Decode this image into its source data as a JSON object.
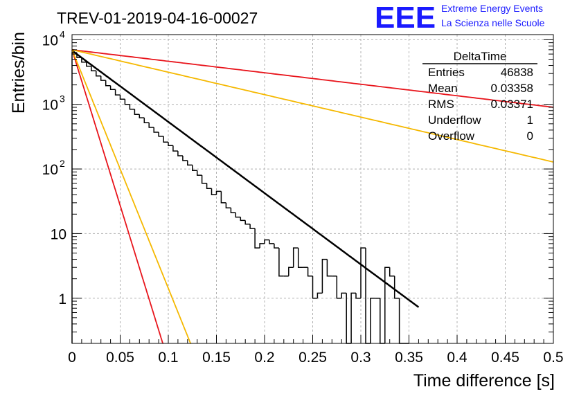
{
  "header": {
    "run_title": "TREV-01-2019-04-16-00027",
    "logo_letters": "EEE",
    "logo_line1": "Extreme Energy Events",
    "logo_line2": "La Scienza nelle Scuole"
  },
  "stats_box": {
    "title": "DeltaTime",
    "rows": [
      {
        "label": "Entries",
        "value": "46838"
      },
      {
        "label": "Mean",
        "value": "0.03358"
      },
      {
        "label": "RMS",
        "value": "0.03371"
      },
      {
        "label": "Underflow",
        "value": "1"
      },
      {
        "label": "Overflow",
        "value": "0"
      }
    ]
  },
  "chart_data": {
    "type": "line",
    "title": "TREV-01-2019-04-16-00027",
    "xlabel": "Time difference [s]",
    "ylabel": "Entries/bin",
    "xlim": [
      0,
      0.5
    ],
    "ylim": [
      0.2,
      12000
    ],
    "yscale": "log",
    "grid": true,
    "x_ticks": [
      "0",
      "0.05",
      "0.1",
      "0.15",
      "0.2",
      "0.25",
      "0.3",
      "0.35",
      "0.4",
      "0.45",
      "0.5"
    ],
    "x_tick_values": [
      0,
      0.05,
      0.1,
      0.15,
      0.2,
      0.25,
      0.3,
      0.35,
      0.4,
      0.45,
      0.5
    ],
    "y_ticks": [
      "1",
      "10",
      "10",
      "10",
      "10"
    ],
    "y_tick_exponents": [
      "",
      "",
      "2",
      "3",
      "4"
    ],
    "y_tick_values": [
      1,
      10,
      100,
      1000,
      10000
    ],
    "histogram": {
      "name": "DeltaTime",
      "color": "#000000",
      "bin_width": 0.005,
      "x_start": 0,
      "values": [
        6300,
        5300,
        4500,
        3900,
        3300,
        2750,
        2350,
        1950,
        1700,
        1400,
        1200,
        1000,
        840,
        700,
        620,
        520,
        440,
        370,
        320,
        260,
        230,
        190,
        160,
        135,
        115,
        95,
        80,
        60,
        50,
        40,
        45,
        30,
        25,
        21,
        18,
        16,
        14,
        12,
        6,
        7,
        8,
        7,
        6,
        2.2,
        2.2,
        3,
        6,
        3,
        3,
        2.2,
        1,
        1.2,
        4,
        2.2,
        2.2,
        1,
        1.2,
        0.1,
        1.2,
        1,
        6,
        0.1,
        1,
        1,
        0.1,
        3,
        2.2,
        1,
        0.1,
        0.1
      ]
    },
    "fit_lines": [
      {
        "color": "#000000",
        "y0": 6800,
        "slope": -25.4,
        "x_end": 0.36
      },
      {
        "color": "#e8141b",
        "y0": 7000,
        "slope": -4.1,
        "x_end": 0.5
      },
      {
        "color": "#f5b800",
        "y0": 7000,
        "slope": -8.0,
        "x_end": 0.5
      },
      {
        "color": "#e8141b",
        "y0": 7000,
        "slope": -111,
        "x_end": 0.12
      },
      {
        "color": "#f5b800",
        "y0": 7000,
        "slope": -85,
        "x_end": 0.15
      }
    ]
  }
}
